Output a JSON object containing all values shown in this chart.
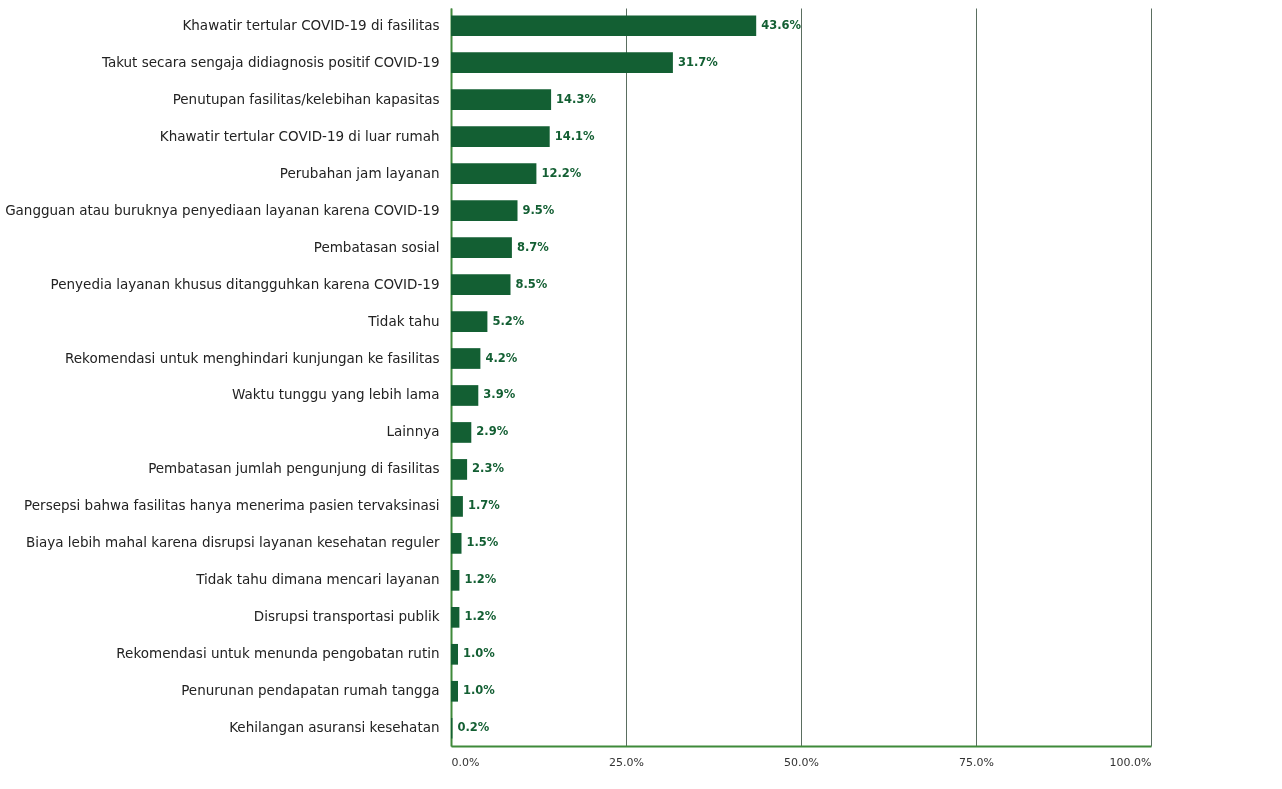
{
  "chart_data": {
    "type": "bar",
    "orientation": "horizontal",
    "categories": [
      "Khawatir tertular COVID-19 di fasilitas",
      "Takut secara sengaja didiagnosis positif COVID-19",
      "Penutupan fasilitas/kelebihan kapasitas",
      "Khawatir tertular COVID-19 di luar rumah",
      "Perubahan jam layanan",
      "Gangguan atau buruknya penyediaan layanan karena COVID-19",
      "Pembatasan sosial",
      "Penyedia layanan khusus ditangguhkan karena COVID-19",
      "Tidak tahu",
      "Rekomendasi untuk menghindari kunjungan ke fasilitas",
      "Waktu tunggu yang lebih lama",
      "Lainnya",
      "Pembatasan jumlah pengunjung di fasilitas",
      "Persepsi bahwa fasilitas hanya menerima pasien tervaksinasi",
      "Biaya lebih mahal karena disrupsi layanan kesehatan reguler",
      "Tidak tahu dimana mencari layanan",
      "Disrupsi transportasi publik",
      "Rekomendasi untuk menunda pengobatan rutin",
      "Penurunan pendapatan rumah tangga",
      "Kehilangan asuransi kesehatan"
    ],
    "values": [
      43.6,
      31.7,
      14.3,
      14.1,
      12.2,
      9.5,
      8.7,
      8.5,
      5.2,
      4.2,
      3.9,
      2.9,
      2.3,
      1.7,
      1.5,
      1.2,
      1.2,
      1.0,
      1.0,
      0.2
    ],
    "value_labels": [
      "43.6%",
      "31.7%",
      "14.3%",
      "14.1%",
      "12.2%",
      "9.5%",
      "8.7%",
      "8.5%",
      "5.2%",
      "4.2%",
      "3.9%",
      "2.9%",
      "2.3%",
      "1.7%",
      "1.5%",
      "1.2%",
      "1.2%",
      "1.0%",
      "1.0%",
      "0.2%"
    ],
    "color": "#135f33",
    "xlim": [
      0,
      100
    ],
    "xticks": [
      {
        "value": 0,
        "label": "0.0%"
      },
      {
        "value": 25,
        "label": "25.0%"
      },
      {
        "value": 50,
        "label": "50.0%"
      },
      {
        "value": 75,
        "label": "75.0%"
      },
      {
        "value": 100,
        "label": "100.0%"
      }
    ],
    "grid": "x"
  }
}
